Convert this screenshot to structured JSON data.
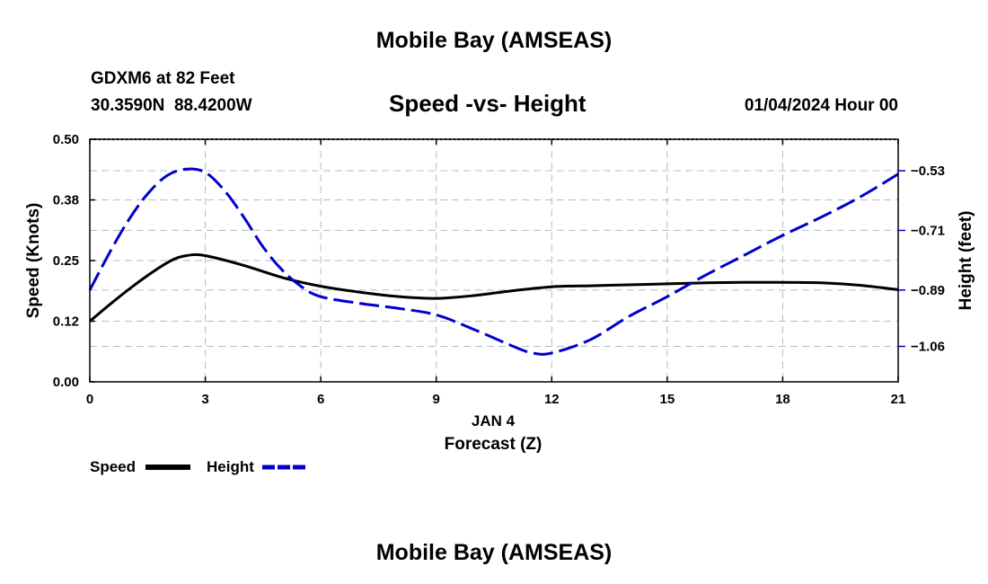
{
  "header": {
    "main_title": "Mobile Bay (AMSEAS)",
    "station_line": "GDXM6 at 82 Feet",
    "coords_line": "30.3590N  88.4200W",
    "datetime": "01/04/2024 Hour 00"
  },
  "footer": {
    "repeat_title": "Mobile Bay (AMSEAS)"
  },
  "colors": {
    "speed": "#000000",
    "height": "#0000cc",
    "grid": "#bbbbbb"
  },
  "chart_data": {
    "type": "line",
    "title": "Speed -vs- Height",
    "xlabel_date": "JAN 4",
    "xlabel": "Forecast (Z)",
    "ylabel": "Speed (Knots)",
    "y2label": "Height (feet)",
    "xlim": [
      0,
      21
    ],
    "ylim": [
      0,
      0.5
    ],
    "y2lim": [
      -1.167,
      -0.435
    ],
    "x_ticks": [
      0,
      3,
      6,
      9,
      12,
      15,
      18,
      21
    ],
    "x_tick_labels": [
      "0",
      "3",
      "6",
      "9",
      "12",
      "15",
      "18",
      "21"
    ],
    "y_ticks": [
      0,
      0.125,
      0.25,
      0.375,
      0.5
    ],
    "y_tick_labels": [
      "0.00",
      "0.12",
      "0.25",
      "0.38",
      "0.50"
    ],
    "y2_ticks": [
      -1.06,
      -0.89,
      -0.71,
      -0.53
    ],
    "y2_tick_labels": [
      "−1.06",
      "−0.89",
      "−0.71",
      "−0.53"
    ],
    "grid": true,
    "legend_position": "bottom-left",
    "series": [
      {
        "name": "Speed",
        "axis": "left",
        "style": "solid",
        "x": [
          0,
          1,
          2,
          2.5,
          3,
          4,
          5,
          6,
          7,
          8,
          9,
          10,
          11,
          12,
          13,
          14,
          15,
          16,
          17,
          18,
          19,
          20,
          21
        ],
        "values": [
          0.125,
          0.19,
          0.245,
          0.26,
          0.26,
          0.24,
          0.215,
          0.197,
          0.185,
          0.176,
          0.172,
          0.178,
          0.188,
          0.196,
          0.198,
          0.2,
          0.202,
          0.204,
          0.205,
          0.205,
          0.204,
          0.199,
          0.19
        ]
      },
      {
        "name": "Height",
        "axis": "right",
        "style": "dashed",
        "x": [
          0,
          0.5,
          1,
          1.5,
          2,
          2.5,
          3,
          3.5,
          4,
          4.5,
          5,
          5.5,
          6,
          7,
          8,
          9,
          10,
          11,
          11.5,
          12,
          13,
          14,
          15,
          16,
          17,
          18,
          19,
          20,
          21
        ],
        "values": [
          -0.89,
          -0.78,
          -0.68,
          -0.6,
          -0.545,
          -0.525,
          -0.535,
          -0.59,
          -0.67,
          -0.76,
          -0.83,
          -0.88,
          -0.91,
          -0.93,
          -0.945,
          -0.965,
          -1.01,
          -1.06,
          -1.08,
          -1.08,
          -1.04,
          -0.97,
          -0.91,
          -0.845,
          -0.785,
          -0.725,
          -0.67,
          -0.61,
          -0.54
        ]
      }
    ]
  }
}
